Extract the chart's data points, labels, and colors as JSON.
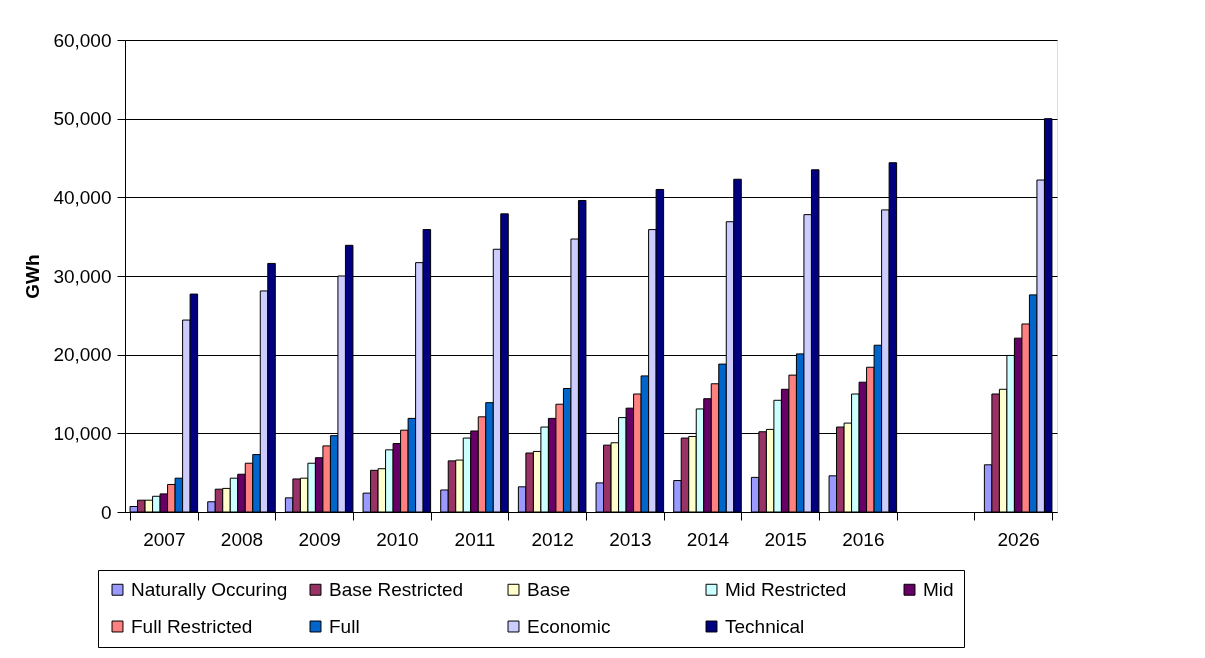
{
  "chart_data": {
    "type": "bar",
    "ylabel": "GWh",
    "categories": [
      "2007",
      "2008",
      "2009",
      "2010",
      "2011",
      "2012",
      "2013",
      "2014",
      "2015",
      "2016",
      null,
      "2026"
    ],
    "series": [
      {
        "name": "Naturally Occuring",
        "color": "#9999ff",
        "values": [
          700,
          1300,
          1800,
          2400,
          2800,
          3200,
          3700,
          4000,
          4400,
          4600,
          null,
          6000
        ]
      },
      {
        "name": "Base Restricted",
        "color": "#993366",
        "values": [
          1500,
          2900,
          4200,
          5300,
          6500,
          7500,
          8500,
          9400,
          10200,
          10800,
          null,
          15000
        ]
      },
      {
        "name": "Base",
        "color": "#ffffcc",
        "values": [
          1500,
          3000,
          4300,
          5500,
          6600,
          7700,
          8800,
          9600,
          10500,
          11300,
          null,
          15600
        ]
      },
      {
        "name": "Mid Restricted",
        "color": "#ccffff",
        "values": [
          2000,
          4300,
          6200,
          7900,
          9400,
          10800,
          12000,
          13100,
          14200,
          15000,
          null,
          19900
        ]
      },
      {
        "name": "Mid",
        "color": "#660066",
        "values": [
          2300,
          4800,
          6900,
          8700,
          10300,
          11900,
          13200,
          14400,
          15600,
          16500,
          null,
          22100
        ]
      },
      {
        "name": "Full Restricted",
        "color": "#ff8080",
        "values": [
          3500,
          6200,
          8400,
          10400,
          12100,
          13700,
          15000,
          16300,
          17400,
          18400,
          null,
          23900
        ]
      },
      {
        "name": "Full",
        "color": "#0066cc",
        "values": [
          4300,
          7300,
          9700,
          11900,
          13900,
          15700,
          17300,
          18800,
          20100,
          21200,
          null,
          27600
        ]
      },
      {
        "name": "Economic",
        "color": "#ccccff",
        "values": [
          24400,
          28100,
          30000,
          31700,
          33400,
          34700,
          35900,
          36900,
          37800,
          38400,
          null,
          42200
        ]
      },
      {
        "name": "Technical",
        "color": "#000080",
        "values": [
          27700,
          31600,
          33900,
          35900,
          37900,
          39600,
          41000,
          42300,
          43500,
          44400,
          null,
          50000
        ]
      }
    ],
    "ylim": [
      0,
      60000
    ],
    "yticks": [
      0,
      {
        "value": 10000,
        "label": "10,000"
      },
      {
        "value": 20000,
        "label": "20,000"
      },
      {
        "value": 30000,
        "label": "30,000"
      },
      {
        "value": 40000,
        "label": "40,000"
      },
      {
        "value": 50000,
        "label": "50,000"
      },
      {
        "value": 60000,
        "label": "60,000"
      }
    ],
    "grid": "y",
    "legend": "bottom"
  }
}
